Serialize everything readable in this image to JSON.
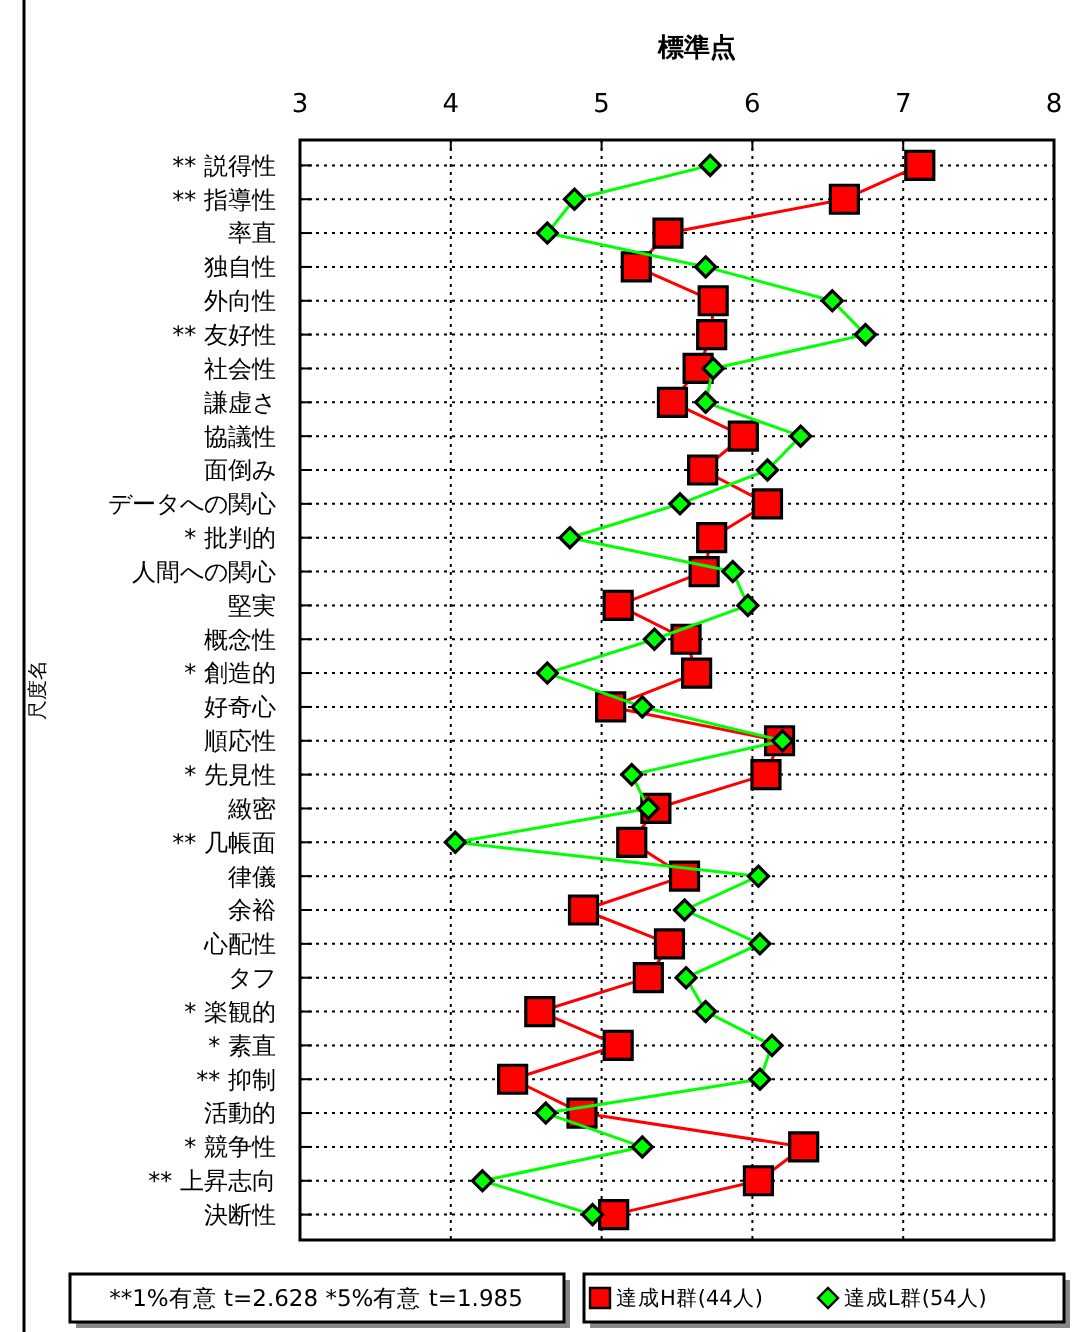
{
  "chart_data": {
    "type": "line",
    "orientation": "horizontal",
    "xlabel": "標準点",
    "ylabel": "尺度名",
    "categories": [
      "** 説得性",
      "** 指導性",
      "率直",
      "独自性",
      "外向性",
      "** 友好性",
      "社会性",
      "謙虚さ",
      "協議性",
      "面倒み",
      "データへの関心",
      "* 批判的",
      "人間への関心",
      "堅実",
      "概念性",
      "* 創造的",
      "好奇心",
      "順応性",
      "* 先見性",
      "緻密",
      "** 几帳面",
      "律儀",
      "余裕",
      "心配性",
      "タフ",
      "* 楽観的",
      "* 素直",
      "** 抑制",
      "活動的",
      "* 競争性",
      "** 上昇志向",
      "決断性"
    ],
    "series": [
      {
        "name": "達成H群(44人)",
        "color": "#ff0000",
        "marker": "square",
        "values": [
          7.11,
          6.61,
          5.44,
          5.23,
          5.74,
          5.73,
          5.64,
          5.47,
          5.94,
          5.67,
          6.1,
          5.73,
          5.68,
          5.11,
          5.56,
          5.63,
          5.06,
          6.18,
          6.09,
          5.36,
          5.2,
          5.55,
          4.88,
          5.45,
          5.31,
          4.59,
          5.11,
          4.41,
          4.87,
          6.34,
          6.04,
          5.08
        ]
      },
      {
        "name": "達成L群(54人)",
        "color": "#00ff00",
        "marker": "diamond",
        "values": [
          5.72,
          4.82,
          4.64,
          5.69,
          6.53,
          6.75,
          5.74,
          5.69,
          6.32,
          6.1,
          5.52,
          4.79,
          5.87,
          5.97,
          5.35,
          4.64,
          5.27,
          6.2,
          5.2,
          5.31,
          4.03,
          6.04,
          5.55,
          6.05,
          5.56,
          5.69,
          6.13,
          6.05,
          4.63,
          5.27,
          4.21,
          4.94
        ]
      }
    ],
    "xlim": [
      3,
      8
    ],
    "xticks": [
      3,
      4,
      5,
      6,
      7,
      8
    ],
    "grid": true,
    "legend": "bottom right",
    "line_style": "solid",
    "annotations": [
      "**1%有意 t=2.628 *5%有意 t=1.985"
    ]
  }
}
